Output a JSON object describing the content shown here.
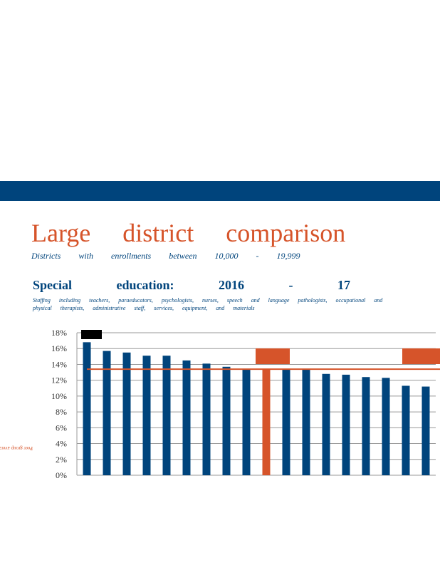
{
  "title": "Large district comparison",
  "subtitle": "Districts with enrollments between 10,000 - 19,999",
  "section_heading": "Special education: 2016 - 17",
  "staffing_note": "Staffing including teachers, paraeducators, psychologists, nurses, speech and language pathologists, occupational and physical therapists, administrative staff, services, equipment, and materials",
  "colors": {
    "band": "#00447c",
    "bar": "#00447c",
    "highlight": "#d6542a",
    "average_line": "#d6542a",
    "text_blue": "#00447c"
  },
  "chart_data": {
    "type": "bar",
    "ylim": [
      0,
      18
    ],
    "ytick_labels": [
      "0%",
      "2%",
      "4%",
      "6%",
      "8%",
      "10%",
      "12%",
      "14%",
      "16%",
      "18%"
    ],
    "values": [
      16.8,
      15.7,
      15.5,
      15.1,
      15.1,
      14.5,
      14.1,
      13.7,
      13.4,
      13.4,
      13.4,
      13.4,
      12.8,
      12.7,
      12.4,
      12.3,
      11.3,
      11.2
    ],
    "highlight_index": 9,
    "average_line_value": 13.4,
    "average_label": "Peer group average",
    "grid": true
  }
}
